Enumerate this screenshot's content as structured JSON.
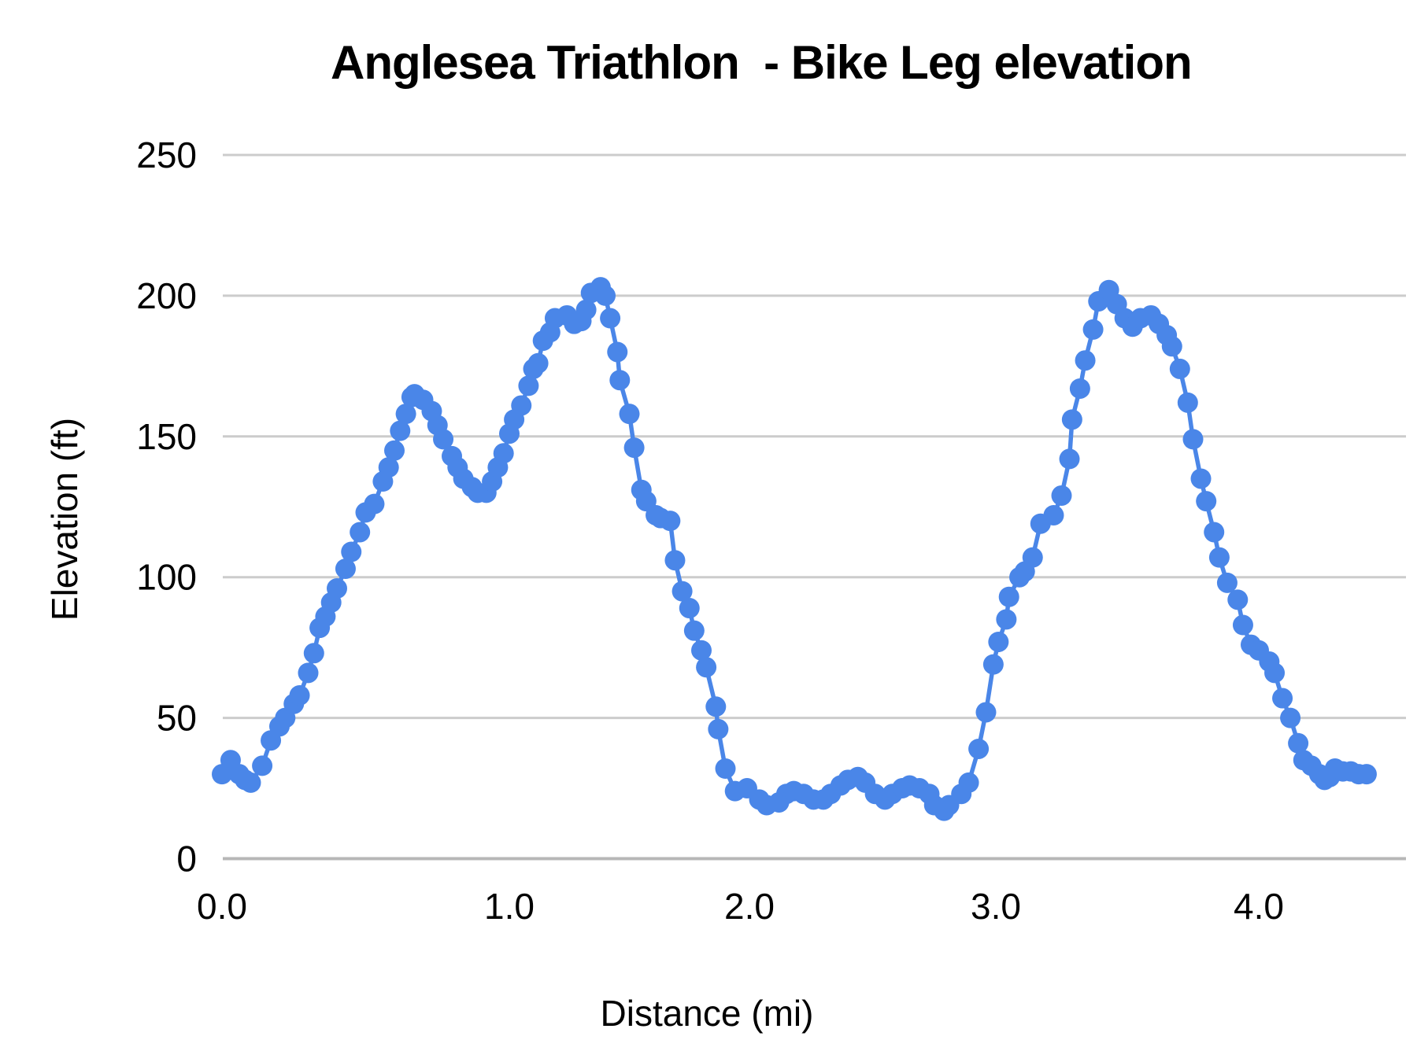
{
  "chart": {
    "title": "Anglesea Triathlon  - Bike Leg elevation",
    "x_axis": {
      "title": "Distance (mi)",
      "tick_labels": [
        "0.0",
        "1.0",
        "2.0",
        "3.0",
        "4.0"
      ]
    },
    "y_axis": {
      "title": "Elevation (ft)",
      "tick_labels": [
        "0",
        "50",
        "100",
        "150",
        "200",
        "250"
      ]
    },
    "colors": {
      "series": "#4a86e8",
      "gridline": "#cccccc",
      "baseline": "#b7b7b7",
      "text": "#000000",
      "background": "#ffffff"
    }
  },
  "chart_data": {
    "type": "line",
    "title": "Anglesea Triathlon  - Bike Leg elevation",
    "xlabel": "Distance (mi)",
    "ylabel": "Elevation (ft)",
    "xlim": [
      0,
      4.57
    ],
    "ylim": [
      0,
      250
    ],
    "xticks": [
      0,
      1,
      2,
      3,
      4
    ],
    "xtick_labels": [
      "0.0",
      "1.0",
      "2.0",
      "3.0",
      "4.0"
    ],
    "yticks": [
      0,
      50,
      100,
      150,
      200,
      250
    ],
    "grid": true,
    "legend": false,
    "marker": "circle",
    "series": [
      {
        "name": "Elevation",
        "color": "#4a86e8",
        "points": [
          [
            0.0,
            30
          ],
          [
            0.03,
            35
          ],
          [
            0.06,
            30
          ],
          [
            0.08,
            28
          ],
          [
            0.1,
            27
          ],
          [
            0.14,
            33
          ],
          [
            0.17,
            42
          ],
          [
            0.2,
            47
          ],
          [
            0.22,
            50
          ],
          [
            0.25,
            55
          ],
          [
            0.27,
            58
          ],
          [
            0.3,
            66
          ],
          [
            0.32,
            73
          ],
          [
            0.34,
            82
          ],
          [
            0.36,
            86
          ],
          [
            0.38,
            91
          ],
          [
            0.4,
            96
          ],
          [
            0.43,
            103
          ],
          [
            0.45,
            109
          ],
          [
            0.48,
            116
          ],
          [
            0.5,
            123
          ],
          [
            0.53,
            126
          ],
          [
            0.56,
            134
          ],
          [
            0.58,
            139
          ],
          [
            0.6,
            145
          ],
          [
            0.62,
            152
          ],
          [
            0.64,
            158
          ],
          [
            0.66,
            164
          ],
          [
            0.67,
            165
          ],
          [
            0.7,
            163
          ],
          [
            0.73,
            159
          ],
          [
            0.75,
            154
          ],
          [
            0.77,
            149
          ],
          [
            0.8,
            143
          ],
          [
            0.82,
            139
          ],
          [
            0.84,
            135
          ],
          [
            0.87,
            132
          ],
          [
            0.89,
            130
          ],
          [
            0.92,
            130
          ],
          [
            0.94,
            134
          ],
          [
            0.96,
            139
          ],
          [
            0.98,
            144
          ],
          [
            1.0,
            151
          ],
          [
            1.02,
            156
          ],
          [
            1.05,
            161
          ],
          [
            1.08,
            168
          ],
          [
            1.1,
            174
          ],
          [
            1.12,
            176
          ],
          [
            1.14,
            184
          ],
          [
            1.17,
            187
          ],
          [
            1.19,
            192
          ],
          [
            1.24,
            193
          ],
          [
            1.27,
            190
          ],
          [
            1.3,
            191
          ],
          [
            1.32,
            195
          ],
          [
            1.34,
            201
          ],
          [
            1.38,
            203
          ],
          [
            1.4,
            200
          ],
          [
            1.42,
            192
          ],
          [
            1.45,
            180
          ],
          [
            1.46,
            170
          ],
          [
            1.5,
            158
          ],
          [
            1.52,
            146
          ],
          [
            1.55,
            131
          ],
          [
            1.57,
            127
          ],
          [
            1.61,
            122
          ],
          [
            1.63,
            121
          ],
          [
            1.67,
            120
          ],
          [
            1.69,
            106
          ],
          [
            1.72,
            95
          ],
          [
            1.75,
            89
          ],
          [
            1.77,
            81
          ],
          [
            1.8,
            74
          ],
          [
            1.82,
            68
          ],
          [
            1.86,
            54
          ],
          [
            1.87,
            46
          ],
          [
            1.9,
            32
          ],
          [
            1.94,
            24
          ],
          [
            1.99,
            25
          ],
          [
            2.04,
            21
          ],
          [
            2.07,
            19
          ],
          [
            2.12,
            20
          ],
          [
            2.15,
            23
          ],
          [
            2.18,
            24
          ],
          [
            2.22,
            23
          ],
          [
            2.26,
            21
          ],
          [
            2.3,
            21
          ],
          [
            2.33,
            23
          ],
          [
            2.37,
            26
          ],
          [
            2.4,
            28
          ],
          [
            2.44,
            29
          ],
          [
            2.47,
            27
          ],
          [
            2.51,
            23
          ],
          [
            2.55,
            21
          ],
          [
            2.58,
            23
          ],
          [
            2.62,
            25
          ],
          [
            2.65,
            26
          ],
          [
            2.69,
            25
          ],
          [
            2.73,
            23
          ],
          [
            2.75,
            19
          ],
          [
            2.79,
            17
          ],
          [
            2.81,
            19
          ],
          [
            2.86,
            23
          ],
          [
            2.89,
            27
          ],
          [
            2.93,
            39
          ],
          [
            2.96,
            52
          ],
          [
            2.99,
            69
          ],
          [
            3.01,
            77
          ],
          [
            3.04,
            85
          ],
          [
            3.05,
            93
          ],
          [
            3.09,
            100
          ],
          [
            3.11,
            102
          ],
          [
            3.14,
            107
          ],
          [
            3.17,
            119
          ],
          [
            3.22,
            122
          ],
          [
            3.25,
            129
          ],
          [
            3.28,
            142
          ],
          [
            3.29,
            156
          ],
          [
            3.32,
            167
          ],
          [
            3.34,
            177
          ],
          [
            3.37,
            188
          ],
          [
            3.39,
            198
          ],
          [
            3.43,
            202
          ],
          [
            3.46,
            197
          ],
          [
            3.49,
            192
          ],
          [
            3.52,
            189
          ],
          [
            3.55,
            192
          ],
          [
            3.59,
            193
          ],
          [
            3.62,
            190
          ],
          [
            3.65,
            186
          ],
          [
            3.67,
            182
          ],
          [
            3.7,
            174
          ],
          [
            3.73,
            162
          ],
          [
            3.75,
            149
          ],
          [
            3.78,
            135
          ],
          [
            3.8,
            127
          ],
          [
            3.83,
            116
          ],
          [
            3.85,
            107
          ],
          [
            3.88,
            98
          ],
          [
            3.92,
            92
          ],
          [
            3.94,
            83
          ],
          [
            3.97,
            76
          ],
          [
            4.0,
            74
          ],
          [
            4.04,
            70
          ],
          [
            4.06,
            66
          ],
          [
            4.09,
            57
          ],
          [
            4.12,
            50
          ],
          [
            4.15,
            41
          ],
          [
            4.17,
            35
          ],
          [
            4.2,
            33
          ],
          [
            4.23,
            30
          ],
          [
            4.25,
            28
          ],
          [
            4.27,
            29
          ],
          [
            4.29,
            32
          ],
          [
            4.32,
            31
          ],
          [
            4.35,
            31
          ],
          [
            4.38,
            30
          ],
          [
            4.41,
            30
          ]
        ]
      }
    ]
  }
}
